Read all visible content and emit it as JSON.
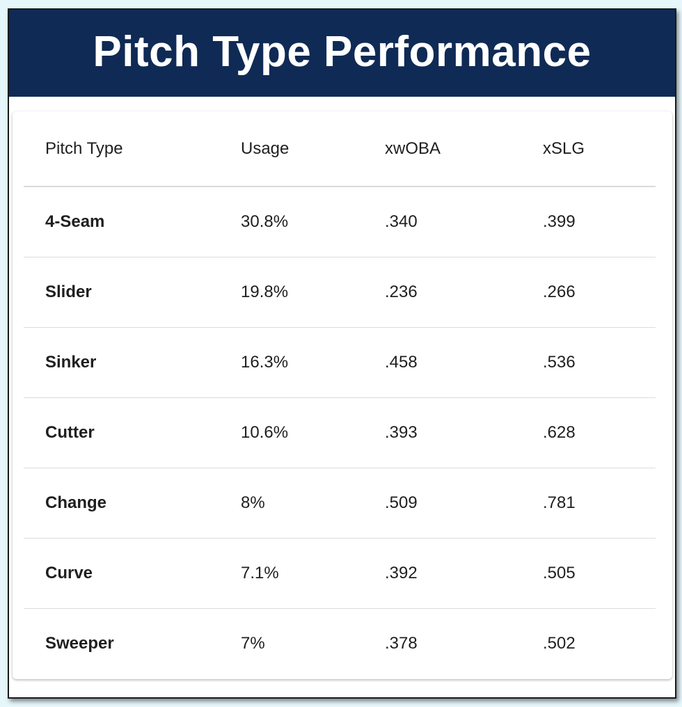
{
  "title": "Pitch Type Performance",
  "chart_data": {
    "type": "table",
    "title": "Pitch Type Performance",
    "columns": [
      "Pitch Type",
      "Usage",
      "xwOBA",
      "xSLG"
    ],
    "rows": [
      [
        "4-Seam",
        "30.8%",
        ".340",
        ".399"
      ],
      [
        "Slider",
        "19.8%",
        ".236",
        ".266"
      ],
      [
        "Sinker",
        "16.3%",
        ".458",
        ".536"
      ],
      [
        "Cutter",
        "10.6%",
        ".393",
        ".628"
      ],
      [
        "Change",
        "8%",
        ".509",
        ".781"
      ],
      [
        "Curve",
        "7.1%",
        ".392",
        ".505"
      ],
      [
        "Sweeper",
        "7%",
        ".378",
        ".502"
      ]
    ]
  },
  "colors": {
    "header_bg": "#0f2a55",
    "header_text": "#ffffff",
    "page_bg": "#e6f7fb"
  }
}
